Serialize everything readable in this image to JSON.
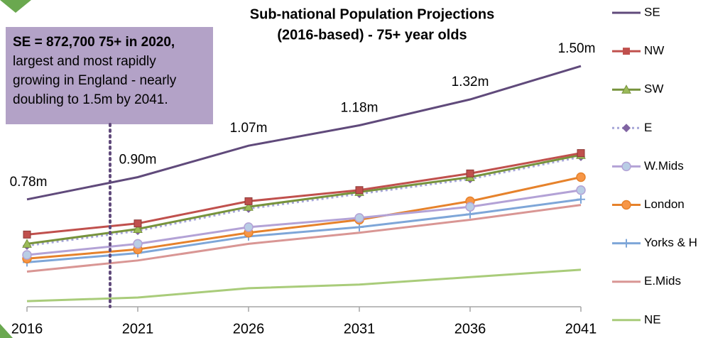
{
  "chart_data": {
    "type": "line",
    "title": "Sub-national Population Projections",
    "subtitle": "(2016-based) - 75+ year olds",
    "categories": [
      "2016",
      "2021",
      "2026",
      "2031",
      "2036",
      "2041"
    ],
    "ylim": [
      0.2,
      1.6
    ],
    "annotation": {
      "heading": "SE = 872,700 75+ in 2020,",
      "lines": [
        "largest and most rapidly",
        "growing in England - nearly",
        "doubling to 1.5m by 2041."
      ]
    },
    "series": [
      {
        "name": "SE",
        "color": "#604a7b",
        "marker": null,
        "values": [
          0.78,
          0.9,
          1.07,
          1.18,
          1.32,
          1.5
        ],
        "value_labels": [
          "0.78m",
          "0.90m",
          "1.07m",
          "1.18m",
          "1.32m",
          "1.50m"
        ]
      },
      {
        "name": "NW",
        "color": "#c0504d",
        "marker": "square",
        "marker_color": "#c0504d",
        "values": [
          0.59,
          0.65,
          0.77,
          0.83,
          0.92,
          1.03
        ]
      },
      {
        "name": "SW",
        "color": "#77933c",
        "marker": "triangle",
        "marker_color": "#9bbb59",
        "values": [
          0.54,
          0.62,
          0.74,
          0.82,
          0.9,
          1.02
        ]
      },
      {
        "name": "E",
        "color": "#a6a6d8",
        "dash": "dotted",
        "marker": "diamond",
        "marker_color": "#8064a2",
        "values": [
          0.53,
          0.61,
          0.73,
          0.81,
          0.89,
          1.01
        ]
      },
      {
        "name": "W.Mids",
        "color": "#b3a2d6",
        "marker": "circle",
        "marker_color": "#b9cde5",
        "values": [
          0.48,
          0.54,
          0.63,
          0.68,
          0.74,
          0.83
        ]
      },
      {
        "name": "London",
        "color": "#e6822b",
        "marker": "circle",
        "marker_color": "#f79646",
        "values": [
          0.46,
          0.51,
          0.6,
          0.67,
          0.77,
          0.9
        ]
      },
      {
        "name": "Yorks & H",
        "color": "#7ea6d8",
        "marker": "plus",
        "marker_color": "#7ea6d8",
        "values": [
          0.44,
          0.49,
          0.58,
          0.63,
          0.7,
          0.78
        ]
      },
      {
        "name": "E.Mids",
        "color": "#d99694",
        "marker": null,
        "values": [
          0.39,
          0.45,
          0.54,
          0.6,
          0.67,
          0.75
        ]
      },
      {
        "name": "NE",
        "color": "#a9cc7a",
        "marker": null,
        "values": [
          0.23,
          0.25,
          0.3,
          0.32,
          0.36,
          0.4
        ]
      }
    ]
  }
}
